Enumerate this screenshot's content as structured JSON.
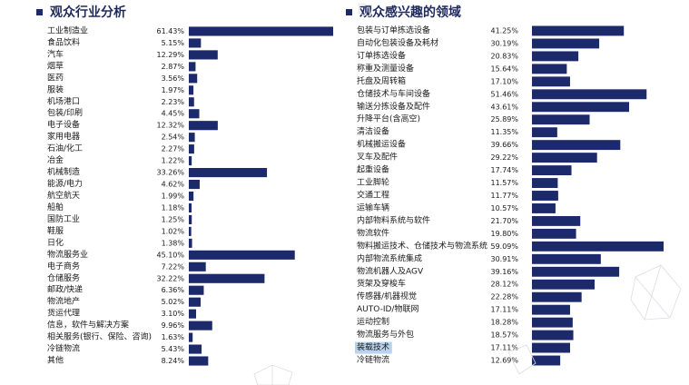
{
  "colors": {
    "bar": "#1c2a6b",
    "title_marker": "#1c2a6b",
    "highlight": "#b9d3ef"
  },
  "chart_data": [
    {
      "type": "bar",
      "orientation": "horizontal",
      "title": "观众行业分析",
      "categories": [
        "工业制造业",
        "食品饮料",
        "汽车",
        "烟草",
        "医药",
        "服装",
        "机场港口",
        "包装/印刷",
        "电子设备",
        "家用电器",
        "石油/化工",
        "冶金",
        "机械制造",
        "能源/电力",
        "航空航天",
        "船舶",
        "国防工业",
        "鞋服",
        "日化",
        "物流服务业",
        "电子商务",
        "仓储服务",
        "邮政/快递",
        "物流地产",
        "货运代理",
        "信息，软件与解决方案",
        "相关服务(银行、保险、咨询)",
        "冷链物流",
        "其他"
      ],
      "values": [
        61.43,
        5.15,
        12.29,
        2.87,
        3.56,
        1.97,
        2.23,
        4.45,
        12.32,
        2.54,
        2.27,
        1.22,
        33.26,
        4.62,
        1.99,
        1.18,
        1.25,
        1.02,
        1.38,
        45.1,
        7.22,
        32.22,
        6.36,
        5.02,
        3.1,
        9.96,
        1.63,
        5.43,
        8.24
      ],
      "value_labels": [
        "61.43%",
        "5.15%",
        "12.29%",
        "2.87%",
        "3.56%",
        "1.97%",
        "2.23%",
        "4.45%",
        "12.32%",
        "2.54%",
        "2.27%",
        "1.22%",
        "33.26%",
        "4.62%",
        "1.99%",
        "1.18%",
        "1.25%",
        "1.02%",
        "1.38%",
        "45.10%",
        "7.22%",
        "32.22%",
        "6.36%",
        "5.02%",
        "3.10%",
        "9.96%",
        "1.63%",
        "5.43%",
        "8.24%"
      ],
      "xlim": [
        0,
        61.43
      ],
      "grid": false,
      "legend": "none"
    },
    {
      "type": "bar",
      "orientation": "horizontal",
      "title": "观众感兴趣的领域",
      "categories": [
        "包装与订单拣选设备",
        "自动化包装设备及耗材",
        "订单拣选设备",
        "称重及测量设备",
        "托盘及周转箱",
        "仓储技术与车间设备",
        "输送分拣设备及配件",
        "升降平台(含高空)",
        "清洁设备",
        "机械搬运设备",
        "叉车及配件",
        "起重设备",
        "工业脚轮",
        "交通工程",
        "运输车辆",
        "内部物料系统与软件",
        "物流软件",
        "物料搬运技术、仓储技术与物流系统",
        "内部物流系统集成",
        "物流机器人及AGV",
        "货架及穿梭车",
        "传感器/机器视觉",
        "AUTO-ID/物联网",
        "运动控制",
        "物流服务与外包",
        "装载技术",
        "冷链物流"
      ],
      "values": [
        41.25,
        30.19,
        20.83,
        15.64,
        17.1,
        51.46,
        43.61,
        25.89,
        11.35,
        39.66,
        29.22,
        17.74,
        11.57,
        11.77,
        10.57,
        21.7,
        19.8,
        59.09,
        30.91,
        39.16,
        28.12,
        22.28,
        17.11,
        18.28,
        18.57,
        17.11,
        12.69
      ],
      "value_labels": [
        "41.25%",
        "30.19%",
        "20.83%",
        "15.64%",
        "17.10%",
        "51.46%",
        "43.61%",
        "25.89%",
        "11.35%",
        "39.66%",
        "29.22%",
        "17.74%",
        "11.57%",
        "11.77%",
        "10.57%",
        "21.70%",
        "19.80%",
        "59.09%",
        "30.91%",
        "39.16%",
        "28.12%",
        "22.28%",
        "17.11%",
        "18.28%",
        "18.57%",
        "17.11%",
        "12.69%"
      ],
      "highlighted_category": "装载技术",
      "xlim": [
        0,
        59.09
      ],
      "grid": false,
      "legend": "none"
    }
  ]
}
